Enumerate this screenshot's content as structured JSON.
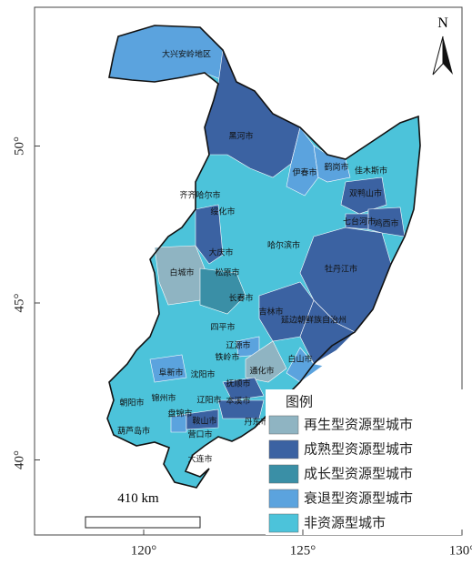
{
  "north": "N",
  "axes": {
    "x_ticks": [
      {
        "value": 120,
        "label": "120°"
      },
      {
        "value": 125,
        "label": "125°"
      },
      {
        "value": 130,
        "label": "130°"
      }
    ],
    "y_ticks": [
      {
        "value": 40,
        "label": "40°"
      },
      {
        "value": 45,
        "label": "45°"
      },
      {
        "value": 50,
        "label": "50°"
      }
    ]
  },
  "legend": {
    "title": "图例",
    "items": [
      {
        "label": "再生型资源型城市",
        "color": "#8fb4c2"
      },
      {
        "label": "成熟型资源型城市",
        "color": "#3b62a2"
      },
      {
        "label": "成长型资源型城市",
        "color": "#3a8fa6"
      },
      {
        "label": "衰退型资源型城市",
        "color": "#5ba3de"
      },
      {
        "label": "非资源型城市",
        "color": "#4cc3da"
      }
    ]
  },
  "scale": "410 km",
  "regions": [
    {
      "name": "大兴安岭地区",
      "type": 3
    },
    {
      "name": "黑河市",
      "type": 1
    },
    {
      "name": "伊春市",
      "type": 3
    },
    {
      "name": "鹤岗市",
      "type": 3
    },
    {
      "name": "佳木斯市",
      "type": 4
    },
    {
      "name": "双鸭山市",
      "type": 1
    },
    {
      "name": "七台河市",
      "type": 1
    },
    {
      "name": "鸡西市",
      "type": 1
    },
    {
      "name": "齐齐哈尔市",
      "type": 4
    },
    {
      "name": "绥化市",
      "type": 4
    },
    {
      "name": "哈尔滨市",
      "type": 4
    },
    {
      "name": "大庆市",
      "type": 1
    },
    {
      "name": "牡丹江市",
      "type": 1
    },
    {
      "name": "白城市",
      "type": 0
    },
    {
      "name": "松原市",
      "type": 2
    },
    {
      "name": "长春市",
      "type": 4
    },
    {
      "name": "吉林市",
      "type": 1
    },
    {
      "name": "延边朝鲜族自治州",
      "type": 1
    },
    {
      "name": "四平市",
      "type": 4
    },
    {
      "name": "辽源市",
      "type": 3
    },
    {
      "name": "铁岭市",
      "type": 4
    },
    {
      "name": "白山市",
      "type": 3
    },
    {
      "name": "通化市",
      "type": 0
    },
    {
      "name": "阜新市",
      "type": 3
    },
    {
      "name": "沈阳市",
      "type": 4
    },
    {
      "name": "抚顺市",
      "type": 1
    },
    {
      "name": "朝阳市",
      "type": 4
    },
    {
      "name": "锦州市",
      "type": 4
    },
    {
      "name": "辽阳市",
      "type": 4
    },
    {
      "name": "本溪市",
      "type": 1
    },
    {
      "name": "盘锦市",
      "type": 3
    },
    {
      "name": "鞍山市",
      "type": 1
    },
    {
      "name": "丹东市",
      "type": 4
    },
    {
      "name": "葫芦岛市",
      "type": 4
    },
    {
      "name": "营口市",
      "type": 4
    },
    {
      "name": "大连市",
      "type": 4
    }
  ]
}
